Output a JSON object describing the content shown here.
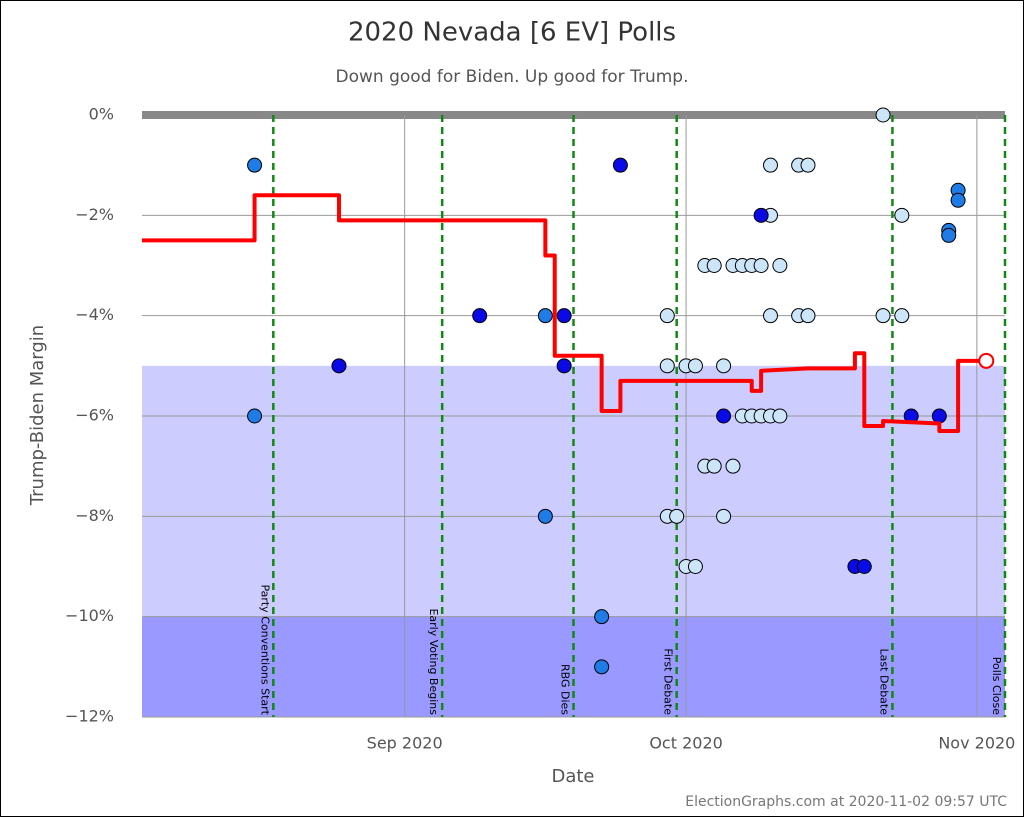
{
  "chart_data": {
    "type": "scatter",
    "title": "2020 Nevada [6 EV] Polls",
    "subtitle": "Down good for Biden. Up good for Trump.",
    "x_label": "Date",
    "y_label": "Trump-Biden Margin",
    "footer": "ElectionGraphs.com at 2020-11-02 09:57 UTC",
    "xlim": [
      "2020-08-04",
      "2020-11-04"
    ],
    "xticks": [
      {
        "value": "2020-09-01",
        "label": "Sep 2020"
      },
      {
        "value": "2020-10-01",
        "label": "Oct 2020"
      },
      {
        "value": "2020-11-01",
        "label": "Nov 2020"
      }
    ],
    "ylim": [
      -12,
      0
    ],
    "yticks": [
      {
        "value": 0,
        "label": "0%"
      },
      {
        "value": -2,
        "label": "−2%"
      },
      {
        "value": -4,
        "label": "−4%"
      },
      {
        "value": -6,
        "label": "−6%"
      },
      {
        "value": -8,
        "label": "−8%"
      },
      {
        "value": -10,
        "label": "−10%"
      },
      {
        "value": -12,
        "label": "−12%"
      }
    ],
    "grid": true,
    "bands": [
      {
        "from": -5,
        "to": -10,
        "color": "#ccccff"
      },
      {
        "from": -10,
        "to": -12,
        "color": "#9999ff"
      }
    ],
    "events": [
      {
        "x": "2020-08-18",
        "label": "Party Conventions Start"
      },
      {
        "x": "2020-09-05",
        "label": "Early Voting Begins"
      },
      {
        "x": "2020-09-19",
        "label": "RBG Dies"
      },
      {
        "x": "2020-09-30",
        "label": "First Debate"
      },
      {
        "x": "2020-10-23",
        "label": "Last Debate"
      },
      {
        "x": "2020-11-04",
        "label": "Polls Close"
      }
    ],
    "series": [
      {
        "color": "#cce5f8",
        "x": [
          "2020-09-29",
          "2020-09-29",
          "2020-09-30",
          "2020-09-29",
          "2020-10-01",
          "2020-10-02",
          "2020-10-01",
          "2020-10-02",
          "2020-10-03",
          "2020-10-04",
          "2020-10-06",
          "2020-10-07",
          "2020-10-08",
          "2020-10-09",
          "2020-10-11",
          "2020-10-03",
          "2020-10-04",
          "2020-10-06",
          "2020-10-05",
          "2020-10-05",
          "2020-10-07",
          "2020-10-08",
          "2020-10-09",
          "2020-10-10",
          "2020-10-11",
          "2020-10-10",
          "2020-10-10",
          "2020-10-13",
          "2020-10-14",
          "2020-10-10",
          "2020-10-13",
          "2020-10-14",
          "2020-10-22",
          "2020-10-22",
          "2020-10-24",
          "2020-10-24"
        ],
        "values": [
          -4,
          -8,
          -8,
          -5,
          -5,
          -5,
          -9,
          -9,
          -3,
          -3,
          -3,
          -3,
          -3,
          -3,
          -3,
          -7,
          -7,
          -7,
          -8,
          -5,
          -6,
          -6,
          -6,
          -6,
          -6,
          -2,
          -1,
          -1,
          -1,
          -4,
          -4,
          -4,
          0,
          -4,
          -4,
          -2
        ]
      },
      {
        "color": "#1f7ce6",
        "x": [
          "2020-08-16",
          "2020-08-16",
          "2020-09-16",
          "2020-09-16",
          "2020-09-22",
          "2020-09-22",
          "2020-10-29",
          "2020-10-29",
          "2020-10-30",
          "2020-10-30"
        ],
        "values": [
          -1,
          -6,
          -4,
          -8,
          -10,
          -11,
          -2.3,
          -2.4,
          -1.5,
          -1.7
        ]
      },
      {
        "color": "#0a0ae6",
        "x": [
          "2020-08-25",
          "2020-09-09",
          "2020-09-18",
          "2020-09-18",
          "2020-09-24",
          "2020-10-05",
          "2020-10-09",
          "2020-10-19",
          "2020-10-20",
          "2020-10-25",
          "2020-10-28"
        ],
        "values": [
          -5,
          -4,
          -4,
          -5,
          -1,
          -6,
          -2,
          -9,
          -9,
          -6,
          -6
        ]
      }
    ],
    "average": {
      "type": "line",
      "color": "#ff0000",
      "x": [
        "2020-08-04",
        "2020-08-16",
        "2020-08-16",
        "2020-08-25",
        "2020-08-25",
        "2020-09-16",
        "2020-09-16",
        "2020-09-17",
        "2020-09-17",
        "2020-09-22",
        "2020-09-22",
        "2020-09-24",
        "2020-09-24",
        "2020-10-08",
        "2020-10-08",
        "2020-10-09",
        "2020-10-09",
        "2020-10-14",
        "2020-10-19",
        "2020-10-19",
        "2020-10-20",
        "2020-10-20",
        "2020-10-22",
        "2020-10-22",
        "2020-10-28",
        "2020-10-28",
        "2020-10-30",
        "2020-10-30",
        "2020-11-02"
      ],
      "values": [
        -2.5,
        -2.5,
        -1.6,
        -1.6,
        -2.1,
        -2.1,
        -2.8,
        -2.8,
        -4.8,
        -4.8,
        -5.9,
        -5.9,
        -5.3,
        -5.3,
        -5.5,
        -5.5,
        -5.1,
        -5.05,
        -5.05,
        -4.75,
        -4.75,
        -6.2,
        -6.2,
        -6.1,
        -6.15,
        -6.3,
        -6.3,
        -4.9,
        -4.9
      ]
    }
  }
}
